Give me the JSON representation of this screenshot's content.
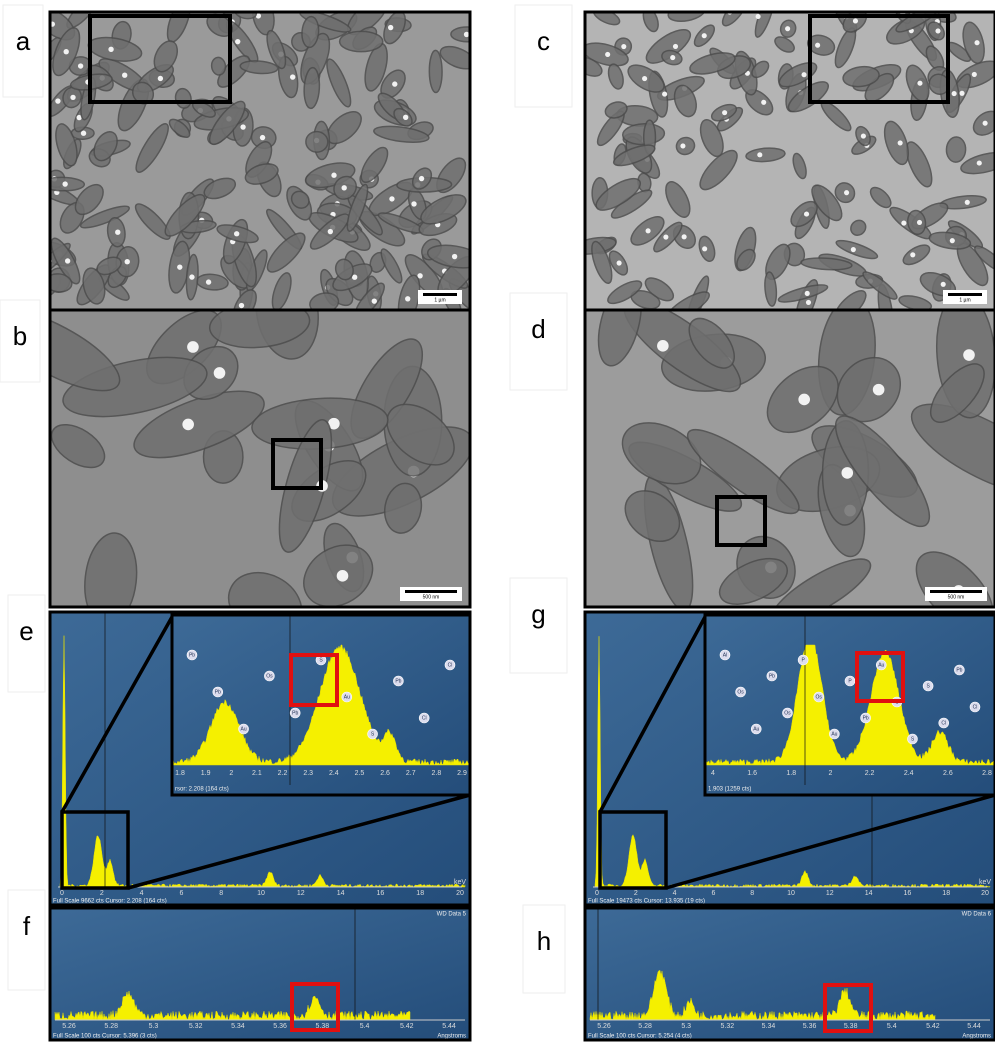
{
  "micrographs": [
    {
      "label": "a",
      "scale_bar": "1 µm"
    },
    {
      "label": "b",
      "scale_bar": "500 nm"
    },
    {
      "label": "c",
      "scale_bar": "1 µm"
    },
    {
      "label": "d",
      "scale_bar": "500 nm"
    }
  ],
  "spectra": [
    {
      "label": "e",
      "status": "Full Scale 9662 cts Cursor: 2.208 (164 cts)",
      "unit": "keV",
      "ticks": [
        "0",
        "2",
        "4",
        "6",
        "8",
        "10",
        "12",
        "14",
        "16",
        "18",
        "20"
      ],
      "inset": {
        "status": "rsor: 2.208 (164 cts)",
        "ticks": [
          "1.8",
          "1.9",
          "2",
          "2.1",
          "2.2",
          "2.3",
          "2.4",
          "2.5",
          "2.6",
          "2.7",
          "2.8",
          "2.9"
        ],
        "peaks": [
          "Pb",
          "Pb",
          "Au",
          "Os",
          "Pb",
          "S",
          "Au",
          "S",
          "Pb",
          "Cl",
          "Cl"
        ]
      }
    },
    {
      "label": "g",
      "status": "Full Scale 19473 cts Cursor: 13.935 (19 cts)",
      "unit": "keV",
      "ticks": [
        "0",
        "2",
        "4",
        "6",
        "8",
        "10",
        "12",
        "14",
        "16",
        "18",
        "20"
      ],
      "inset": {
        "status": "1.903 (1259 cts)",
        "ticks": [
          "4",
          "1.6",
          "1.8",
          "2",
          "2.2",
          "2.4",
          "2.6",
          "2.8"
        ],
        "peaks": [
          "Al",
          "Os",
          "Au",
          "Pb",
          "Os",
          "P",
          "Os",
          "Au",
          "P",
          "Pb",
          "Au",
          "S",
          "S",
          "S",
          "Cl",
          "Pb",
          "Cl"
        ]
      }
    },
    {
      "label": "f",
      "status": "Full Scale 100 cts Cursor: 5.396 (3 cts)",
      "unit": "Angstroms",
      "tag": "WD Data 5",
      "ticks": [
        "5.26",
        "5.28",
        "5.3",
        "5.32",
        "5.34",
        "5.36",
        "5.38",
        "5.4",
        "5.42",
        "5.44"
      ]
    },
    {
      "label": "h",
      "status": "Full Scale 100 cts Cursor: 5.254 (4 cts)",
      "unit": "Angstroms",
      "tag": "WD Data 6",
      "ticks": [
        "5.26",
        "5.28",
        "5.3",
        "5.32",
        "5.34",
        "5.36",
        "5.38",
        "5.4",
        "5.42",
        "5.44"
      ]
    }
  ]
}
